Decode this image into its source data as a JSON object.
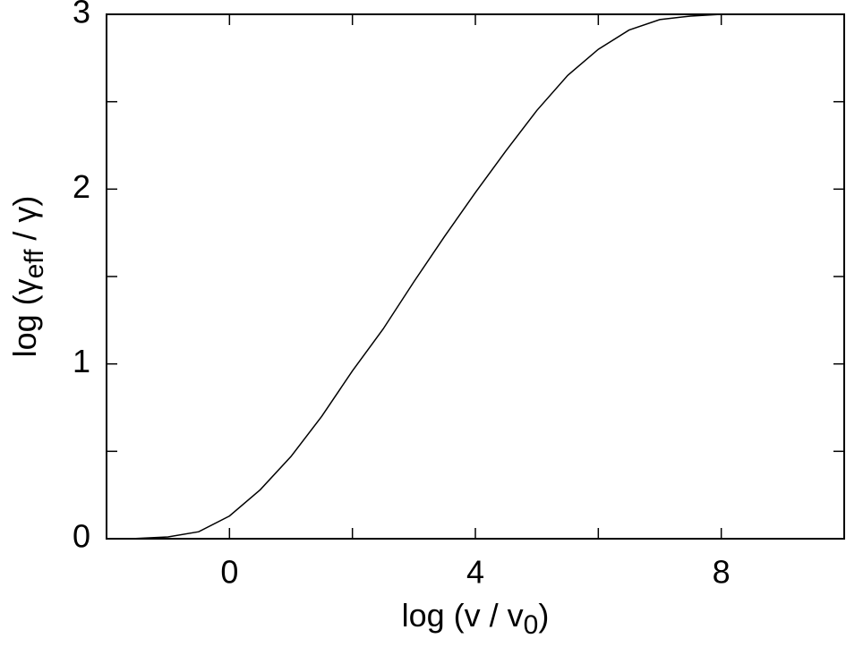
{
  "chart_data": {
    "type": "line",
    "xlabel": {
      "main": "log (v / v",
      "sub": "0",
      "tail": ")"
    },
    "ylabel": {
      "main": "log (γ",
      "sub": "eff",
      "tail": " / γ)"
    },
    "x": [
      -1.6,
      -1,
      -0.5,
      0,
      0.5,
      1,
      1.5,
      2,
      2.5,
      3,
      3.5,
      4,
      4.5,
      5,
      5.5,
      6,
      6.5,
      7,
      7.5,
      8
    ],
    "series": [
      {
        "color": "#000000",
        "values": [
          0,
          0.01,
          0.04,
          0.13,
          0.28,
          0.47,
          0.7,
          0.96,
          1.2,
          1.47,
          1.73,
          1.98,
          2.22,
          2.45,
          2.65,
          2.8,
          2.91,
          2.97,
          2.99,
          3.0
        ]
      }
    ],
    "xlim": [
      -2,
      10
    ],
    "ylim": [
      0,
      3
    ],
    "xticks": [
      0,
      4,
      8
    ],
    "x_minor_ticks": [
      2,
      6
    ],
    "yticks": [
      0,
      1,
      2,
      3
    ],
    "y_minor_ticks": [
      0.5,
      1.5,
      2.5
    ]
  }
}
